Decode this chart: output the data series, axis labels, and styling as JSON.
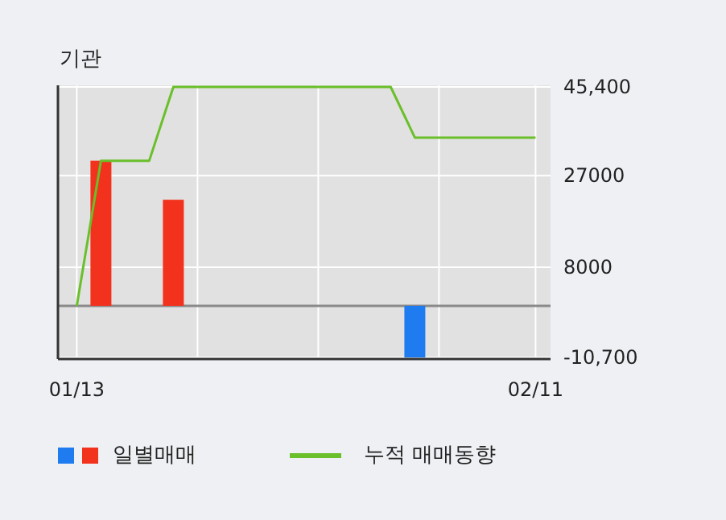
{
  "chart_data": {
    "type": "bar",
    "title": "기관",
    "categories": [
      "01/13",
      null,
      null,
      null,
      null,
      null,
      null,
      null,
      null,
      null,
      null,
      null,
      null,
      null,
      null,
      null,
      null,
      null,
      null,
      "02/11"
    ],
    "series": [
      {
        "name": "일별매매",
        "colors": [
          null,
          "#f2321c",
          null,
          null,
          "#f2321c",
          null,
          null,
          null,
          null,
          null,
          null,
          null,
          null,
          null,
          "#1e7cf0",
          null,
          null,
          null,
          null,
          null
        ],
        "values": [
          null,
          30100,
          null,
          null,
          22000,
          null,
          null,
          null,
          null,
          null,
          null,
          null,
          null,
          null,
          -10700,
          null,
          null,
          null,
          null,
          null
        ]
      },
      {
        "name": "누적 매매동향",
        "type": "line",
        "color": "#6abf2a",
        "values": [
          0,
          30100,
          30100,
          30100,
          45400,
          45400,
          45400,
          45400,
          45400,
          45400,
          45400,
          45400,
          45400,
          45400,
          34900,
          34900,
          34900,
          34900,
          34900,
          34900
        ]
      }
    ],
    "ylim": [
      -10700,
      45400
    ],
    "yticks": [
      {
        "value": 45400,
        "label": "45,400"
      },
      27000,
      8000,
      {
        "value": -10700,
        "label": "-10,700"
      }
    ],
    "grid": true,
    "legend": "bottom"
  }
}
